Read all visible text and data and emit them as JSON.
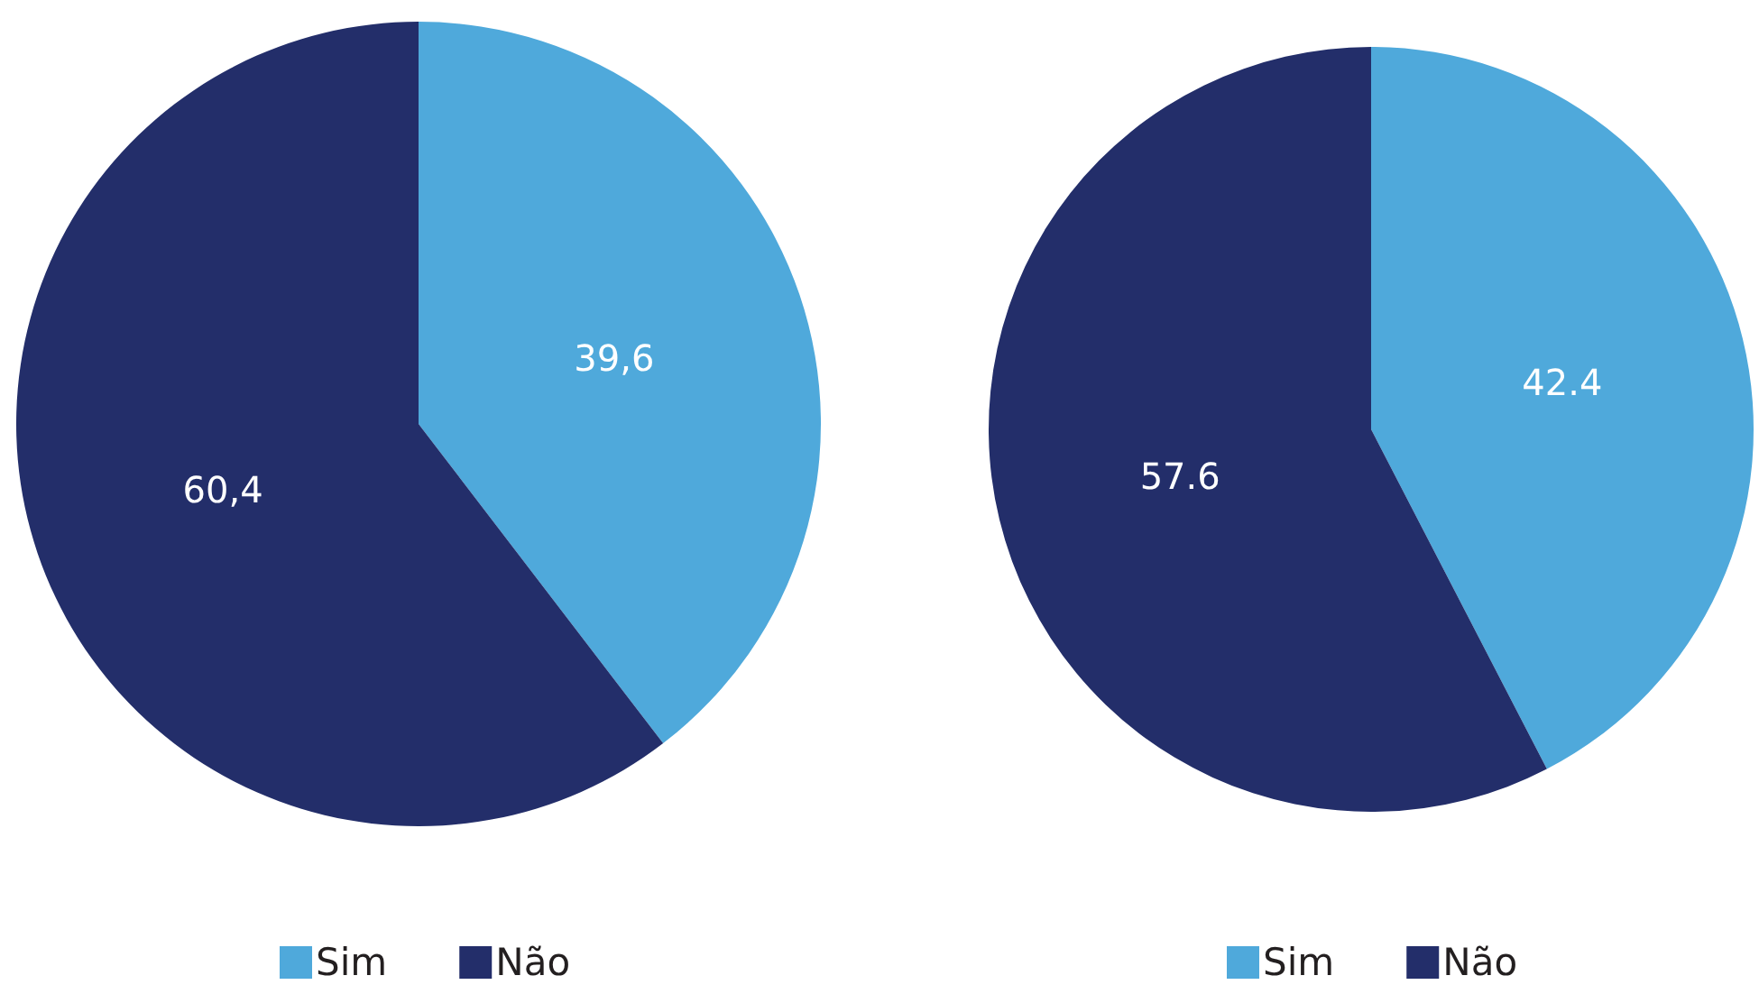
{
  "chart_data": [
    {
      "type": "pie",
      "categories": [
        "Sim",
        "Não"
      ],
      "values": [
        39.6,
        60.4
      ],
      "colors": [
        "#4fa9db",
        "#232e6a"
      ],
      "value_labels": [
        "39,6",
        "60,4"
      ],
      "legend": "bottom"
    },
    {
      "type": "pie",
      "categories": [
        "Sim",
        "Não"
      ],
      "values": [
        42.4,
        57.6
      ],
      "colors": [
        "#4fa9db",
        "#232e6a"
      ],
      "value_labels": [
        "42.4",
        "57.6"
      ],
      "legend": "bottom"
    }
  ]
}
